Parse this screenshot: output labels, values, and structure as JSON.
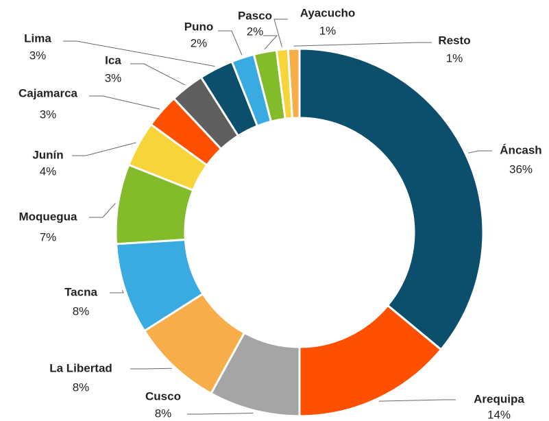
{
  "chart_data": {
    "type": "donut",
    "categories": [
      "Áncash",
      "Arequipa",
      "Cusco",
      "La Libertad",
      "Tacna",
      "Moquegua",
      "Junín",
      "Cajamarca",
      "Ica",
      "Lima",
      "Puno",
      "Pasco",
      "Ayacucho",
      "Resto"
    ],
    "values": [
      36,
      14,
      8,
      8,
      8,
      7,
      4,
      3,
      3,
      3,
      2,
      2,
      1,
      1
    ],
    "value_labels": [
      "36%",
      "14%",
      "8%",
      "8%",
      "8%",
      "7%",
      "4%",
      "3%",
      "3%",
      "3%",
      "2%",
      "2%",
      "1%",
      "1%"
    ],
    "colors": [
      "#0b4f6c",
      "#ff5000",
      "#a5a5a5",
      "#f7ad4a",
      "#3aabe0",
      "#84bb2a",
      "#f7d43a",
      "#ff5000",
      "#5f5f5f",
      "#0b4f6c",
      "#3aabe0",
      "#84bb2a",
      "#f7d43a",
      "#f7ad4a"
    ]
  }
}
